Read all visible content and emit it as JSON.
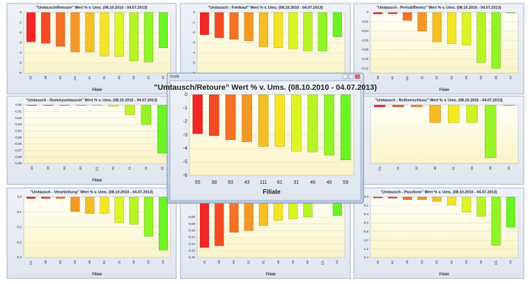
{
  "window_title": "Grafik",
  "chart_data": [
    {
      "type": "bar",
      "title": "\"Umtausch/Retoure\" Wert % v. Ums. (08.10.2010 - 04.07.2013)",
      "xlabel": "Filiale",
      "categories": [
        "55",
        "38",
        "93",
        "111",
        "61",
        "31",
        "46",
        "59",
        "92",
        "43"
      ],
      "values": [
        -2.9,
        -3.05,
        -3.35,
        -3.9,
        -3.9,
        -4.3,
        -4.35,
        -4.8,
        -4.9,
        -3.5
      ],
      "ylim": [
        -6,
        0
      ],
      "yticks": [
        0,
        -1,
        -2,
        -3,
        -4,
        -5,
        -6
      ]
    },
    {
      "type": "bar",
      "title": "\"Umtausch - Fehlkauf\" Wert % v. Ums. (08.10.2010 - 04.07.2013)",
      "categories": [
        null,
        null,
        null,
        null,
        null,
        null,
        null,
        null,
        null,
        null
      ],
      "values": [
        -2.2,
        -2.5,
        -2.65,
        -2.8,
        -3.4,
        -3.5,
        -3.6,
        -3.8,
        -3.8,
        -2.4
      ],
      "ylim": [
        -6,
        0
      ],
      "yticks": [
        0,
        -1,
        -2,
        -3,
        -4,
        -5,
        -6
      ]
    },
    {
      "type": "bar",
      "title": "\"Umtausch - Preisdifferenz\" Wert % v. Ums. (08.10.2010 - 04.07.2013)",
      "xlabel": "Filiale",
      "categories": [
        "38",
        "61",
        "111",
        "31",
        "55",
        "92",
        "59",
        "93",
        "46",
        "43"
      ],
      "values": [
        -0.003,
        -0.003,
        -0.017,
        -0.04,
        -0.063,
        -0.067,
        -0.07,
        -0.107,
        -0.12,
        0
      ],
      "ylim": [
        -0.13,
        0
      ],
      "yticks": [
        {
          "value": 0,
          "label": "0"
        },
        {
          "value": -0.02,
          "label": "-0,02"
        },
        {
          "value": -0.04,
          "label": "-0,04"
        },
        {
          "value": -0.06,
          "label": "-0,06"
        },
        {
          "value": -0.08,
          "label": "-0,08"
        },
        {
          "value": -0.1,
          "label": "-0,10"
        },
        {
          "value": -0.12,
          "label": "-0,12"
        }
      ]
    },
    {
      "type": "bar",
      "title": "\"Umtausch - Dummyumtausch\" Wert % v. Ums. (08.10.2010 - 04.07.2013)",
      "xlabel": "Filiale",
      "categories": [
        "44",
        "38",
        "93",
        "43",
        "111",
        "92",
        "61",
        "31",
        "55"
      ],
      "values": [
        0,
        0,
        0,
        0,
        0,
        -0.002,
        -0.015,
        -0.03,
        -0.074
      ],
      "ylim": [
        -0.09,
        0
      ],
      "yticks": [
        {
          "value": 0,
          "label": "0,00"
        },
        {
          "value": -0.01,
          "label": "-0,01"
        },
        {
          "value": -0.02,
          "label": "-0,02"
        },
        {
          "value": -0.03,
          "label": "-0,03"
        },
        {
          "value": -0.04,
          "label": "-0,04"
        },
        {
          "value": -0.05,
          "label": "-0,05"
        },
        {
          "value": -0.06,
          "label": "-0,06"
        },
        {
          "value": -0.07,
          "label": "-0,07"
        },
        {
          "value": -0.08,
          "label": "-0,08"
        },
        {
          "value": -0.09,
          "label": "-0,09"
        }
      ]
    },
    {
      "type": "bar",
      "title": "\"Umtausch - Reißverschluss\" Wert % v. Ums. (08.10.2010 - 04.07.2013)",
      "categories": [
        "111",
        "31",
        "92",
        "40",
        "61",
        "55",
        "38",
        "43"
      ],
      "values": [
        -0.003,
        -0.003,
        -0.003,
        -0.03,
        -0.03,
        -0.03,
        -0.09,
        0
      ],
      "ylim": [
        -0.1,
        0
      ],
      "yticks": []
    },
    {
      "type": "bar",
      "title": "\"Umtausch - Verarbeitung\" Wert % v. Ums. (08.10.2010 - 04.07.2013)",
      "xlabel": "Filiale",
      "categories": [
        "111",
        "38",
        "55",
        "93",
        "40",
        "61",
        "31",
        "46",
        "59",
        "43"
      ],
      "values": [
        -0.01,
        -0.01,
        -0.01,
        -0.095,
        -0.11,
        -0.11,
        -0.17,
        -0.18,
        -0.26,
        -0.35
      ],
      "ylim": [
        -0.4,
        0
      ],
      "yticks": [
        {
          "value": 0,
          "label": "0,0"
        },
        {
          "value": -0.1,
          "label": "-0,1"
        },
        {
          "value": -0.2,
          "label": "-0,2"
        },
        {
          "value": -0.3,
          "label": "-0,3"
        },
        {
          "value": -0.4,
          "label": "-0,4"
        }
      ]
    },
    {
      "type": "bar",
      "xlabel": "Filiale",
      "categories": [
        "31",
        "38",
        "93",
        "92",
        "61",
        "46",
        "40",
        "55",
        "111",
        "43"
      ],
      "values": [
        -0.15,
        -0.145,
        -0.105,
        -0.1,
        -0.085,
        -0.07,
        -0.065,
        -0.06,
        -0.005,
        -0.055
      ],
      "ylim": [
        -0.18,
        0
      ],
      "yticks": [
        {
          "value": -0.06,
          "label": "-0,06"
        },
        {
          "value": -0.08,
          "label": "-0,08"
        },
        {
          "value": -0.1,
          "label": "-0,10"
        },
        {
          "value": -0.12,
          "label": "-0,12"
        },
        {
          "value": -0.14,
          "label": "-0,14"
        },
        {
          "value": -0.16,
          "label": "-0,16"
        },
        {
          "value": -0.18,
          "label": "-0,18"
        }
      ]
    },
    {
      "type": "bar",
      "title": "\"Umtausch - Passform\" Wert % v. Ums. (08.10.2010 - 04.07.2013)",
      "xlabel": "Filiale",
      "categories": [
        "31",
        "61",
        "38",
        "93",
        "55",
        "92",
        "59",
        "46",
        "111",
        "43"
      ],
      "values": [
        -0.02,
        -0.03,
        -0.06,
        -0.06,
        -0.1,
        -0.18,
        -0.35,
        -0.45,
        -1.12,
        -0.7
      ],
      "ylim": [
        -1.4,
        0
      ],
      "yticks": [
        {
          "value": 0,
          "label": "0,0"
        },
        {
          "value": -0.2,
          "label": "-0,2"
        },
        {
          "value": -0.4,
          "label": "-0,4"
        },
        {
          "value": -0.6,
          "label": "-0,6"
        },
        {
          "value": -0.8,
          "label": "-0,8"
        },
        {
          "value": -1,
          "label": "-1,0"
        },
        {
          "value": -1.2,
          "label": "-1,2"
        },
        {
          "value": -1.4,
          "label": "-1,4"
        }
      ]
    },
    {
      "type": "bar",
      "title": "\"Umtausch/Retoure\" Wert % v. Ums. (08.10.2010 - 04.07.2013)",
      "xlabel": "Filiale",
      "categories": [
        "55",
        "38",
        "93",
        "43",
        "111",
        "61",
        "31",
        "46",
        "40",
        "59"
      ],
      "values": [
        -2.9,
        -3.05,
        -3.35,
        -3.5,
        -3.85,
        -3.85,
        -4.2,
        -4.25,
        -4.5,
        -4.85
      ],
      "ylim": [
        -6,
        0
      ],
      "yticks": [
        0,
        -1,
        -2,
        -3,
        -4,
        -5,
        -6
      ]
    }
  ]
}
